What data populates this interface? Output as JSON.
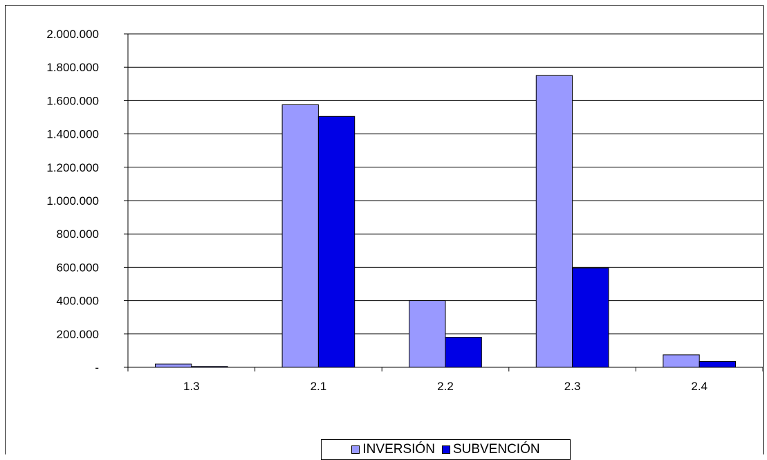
{
  "chart_data": {
    "type": "bar",
    "categories": [
      "1.3",
      "2.1",
      "2.2",
      "2.3",
      "2.4"
    ],
    "series": [
      {
        "name": "INVERSIÓN",
        "color": "#9999ff",
        "values": [
          20000,
          1575000,
          400000,
          1750000,
          75000
        ]
      },
      {
        "name": "SUBVENCIÓN",
        "color": "#0000e6",
        "values": [
          5000,
          1505000,
          180000,
          595000,
          35000
        ]
      }
    ],
    "ylim": [
      0,
      2000000
    ],
    "yticks": [
      0,
      200000,
      400000,
      600000,
      800000,
      1000000,
      1200000,
      1400000,
      1600000,
      1800000,
      2000000
    ],
    "ytick_labels": [
      "-",
      "200.000",
      "400.000",
      "600.000",
      "800.000",
      "1.000.000",
      "1.200.000",
      "1.400.000",
      "1.600.000",
      "1.800.000",
      "2.000.000"
    ],
    "grid": true,
    "legend_position": "bottom"
  }
}
